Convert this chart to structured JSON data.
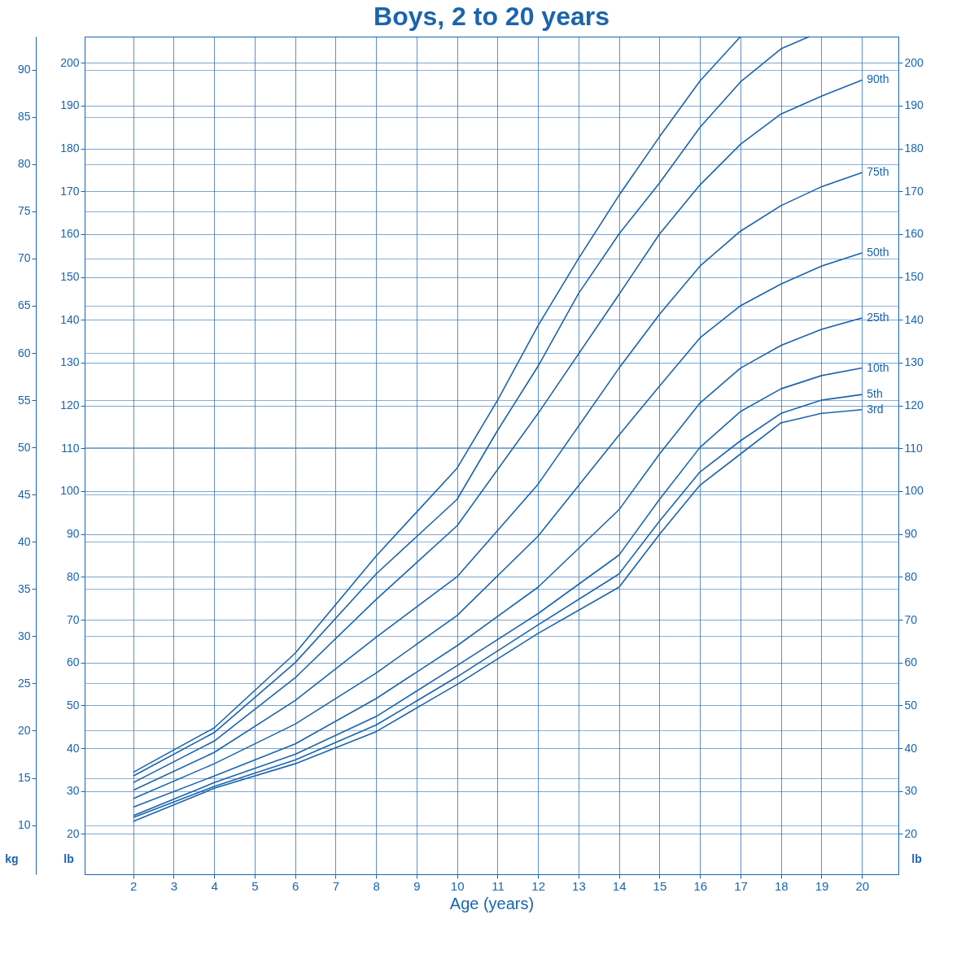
{
  "chart_data": {
    "type": "line",
    "title": "Boys, 2 to 20 years",
    "xlabel": "Age (years)",
    "ylabel": "kg",
    "y2label": "lb",
    "y3label": "lb",
    "x": [
      2,
      4,
      6,
      8,
      10,
      12,
      14,
      15,
      16,
      17,
      18,
      19,
      20
    ],
    "xlim": [
      0.8,
      20.9
    ],
    "xticks": [
      2,
      3,
      4,
      5,
      6,
      7,
      8,
      9,
      10,
      11,
      12,
      13,
      14,
      15,
      16,
      17,
      18,
      19,
      20
    ],
    "ylim": [
      4.8,
      93.5
    ],
    "yticks": [
      10,
      15,
      20,
      25,
      30,
      35,
      40,
      45,
      50,
      55,
      60,
      65,
      70,
      75,
      80,
      85,
      90
    ],
    "y2lim": [
      10.6,
      206.1
    ],
    "y2ticks": [
      20,
      30,
      40,
      50,
      60,
      70,
      80,
      90,
      100,
      110,
      120,
      130,
      140,
      150,
      160,
      170,
      180,
      190,
      200
    ],
    "y3lim": [
      10.6,
      206.1
    ],
    "y3ticks": [
      20,
      30,
      40,
      50,
      60,
      70,
      80,
      90,
      100,
      110,
      120,
      130,
      140,
      150,
      160,
      170,
      180,
      190,
      200
    ],
    "grid": true,
    "series": [
      {
        "color": "#1a64ad",
        "x": [
          2,
          4,
          6,
          8,
          10,
          11,
          12,
          13,
          14,
          15,
          16,
          17
        ],
        "values": [
          15.6,
          20.3,
          28.2,
          38.5,
          47.8,
          55.0,
          62.9,
          70.0,
          76.7,
          82.9,
          88.8,
          93.5
        ]
      },
      {
        "color": "#1a64ad",
        "x": [
          2,
          4,
          6,
          8,
          10,
          11,
          12,
          13,
          14,
          15,
          16,
          17,
          18,
          18.7
        ],
        "values": [
          15.2,
          19.8,
          27.2,
          36.6,
          44.5,
          51.8,
          58.6,
          66.3,
          72.6,
          78.0,
          83.9,
          88.7,
          92.2,
          93.5
        ]
      },
      {
        "name": "90th",
        "color": "#1a64ad",
        "values": [
          14.5,
          18.9,
          25.6,
          33.9,
          41.7,
          53.6,
          66.2,
          72.6,
          77.8,
          82.1,
          85.3,
          87.2,
          88.9
        ]
      },
      {
        "name": "75th",
        "color": "#1a64ad",
        "values": [
          13.7,
          17.7,
          23.2,
          29.9,
          36.3,
          46.1,
          58.4,
          64.1,
          69.2,
          72.9,
          75.6,
          77.6,
          79.1
        ]
      },
      {
        "name": "50th",
        "color": "#1a64ad",
        "values": [
          12.8,
          16.5,
          20.7,
          26.1,
          32.2,
          40.6,
          51.3,
          56.5,
          61.6,
          65.0,
          67.3,
          69.2,
          70.6
        ]
      },
      {
        "name": "25th",
        "color": "#1a64ad",
        "values": [
          11.9,
          15.2,
          18.6,
          23.4,
          29.0,
          35.2,
          43.4,
          49.3,
          54.7,
          58.4,
          60.8,
          62.5,
          63.7
        ]
      },
      {
        "name": "10th",
        "color": "#1a64ad",
        "values": [
          11.0,
          14.5,
          17.5,
          21.5,
          26.9,
          32.4,
          38.6,
          44.5,
          50.0,
          53.8,
          56.2,
          57.6,
          58.4
        ]
      },
      {
        "name": "5th",
        "color": "#1a64ad",
        "values": [
          10.8,
          14.1,
          16.9,
          20.6,
          25.7,
          31.2,
          36.6,
          42.2,
          47.4,
          50.7,
          53.6,
          55.0,
          55.6
        ]
      },
      {
        "name": "3rd",
        "color": "#1a64ad",
        "values": [
          10.4,
          13.9,
          16.5,
          19.9,
          24.9,
          30.3,
          35.2,
          40.8,
          46.0,
          49.3,
          52.6,
          53.6,
          54.0
        ]
      }
    ]
  }
}
